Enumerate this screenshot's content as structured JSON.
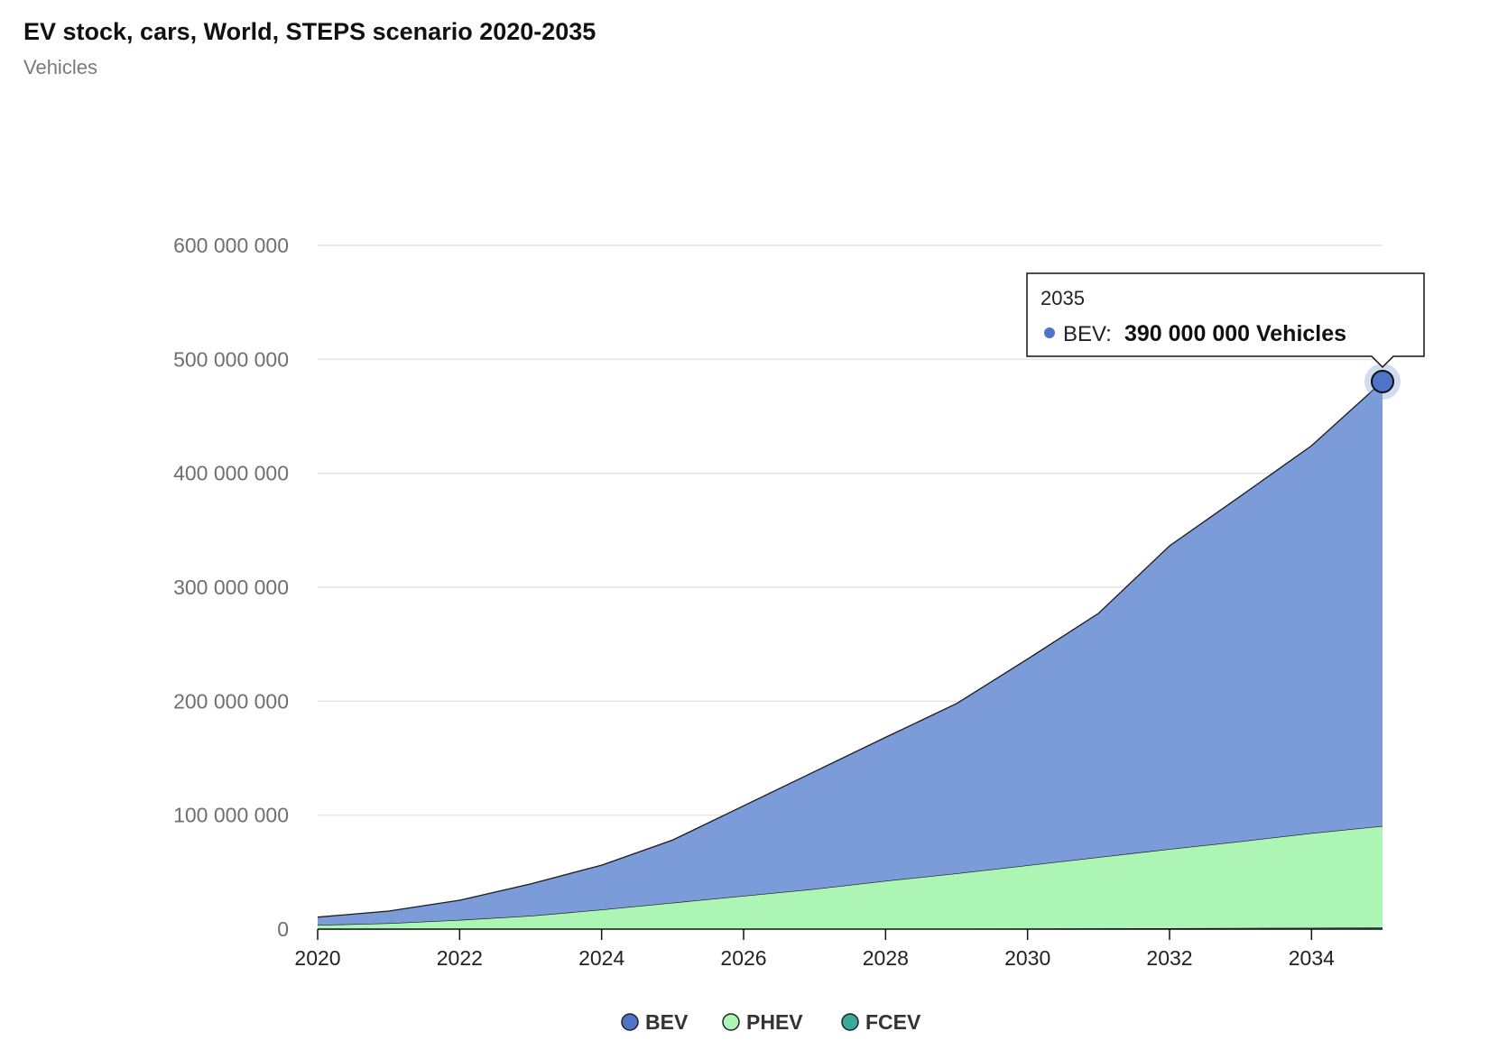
{
  "chart_data": {
    "type": "area",
    "stacked": true,
    "title": "EV stock, cars, World, STEPS scenario 2020-2035",
    "subtitle": "Vehicles",
    "xlabel": "",
    "ylabel": "",
    "x": [
      2020,
      2021,
      2022,
      2023,
      2024,
      2025,
      2026,
      2027,
      2028,
      2029,
      2030,
      2031,
      2032,
      2033,
      2034,
      2035
    ],
    "series": [
      {
        "name": "FCEV",
        "color": "#3aa99a",
        "values": [
          34000,
          50000,
          70000,
          90000,
          120000,
          150000,
          200000,
          260000,
          320000,
          400000,
          500000,
          650000,
          800000,
          1000000,
          1200000,
          1500000
        ]
      },
      {
        "name": "PHEV",
        "color": "#adf5b4",
        "values": [
          3600000,
          5100000,
          8000000,
          11600000,
          17000000,
          23000000,
          29000000,
          35000000,
          42000000,
          48500000,
          55500000,
          62500000,
          69500000,
          76000000,
          83000000,
          89000000
        ]
      },
      {
        "name": "BEV",
        "color": "#7b9bd9",
        "values": [
          6900000,
          10700000,
          17300000,
          28000000,
          39000000,
          55000000,
          79000000,
          103000000,
          126000000,
          149000000,
          181000000,
          214000000,
          266000000,
          303000000,
          340000000,
          390000000
        ]
      }
    ],
    "xticks": [
      "2020",
      "2022",
      "2024",
      "2026",
      "2028",
      "2030",
      "2032",
      "2034"
    ],
    "yticks": [
      "0",
      "100 000 000",
      "200 000 000",
      "300 000 000",
      "400 000 000",
      "500 000 000",
      "600 000 000"
    ],
    "xlim": [
      2020,
      2035
    ],
    "ylim": [
      0,
      600000000
    ],
    "grid": true,
    "legend": {
      "placement": "bottom-center",
      "items": [
        "BEV",
        "PHEV",
        "FCEV"
      ]
    },
    "tooltip": {
      "year": "2035",
      "series": "BEV",
      "label": "BEV:",
      "value_text": "390 000 000 Vehicles"
    }
  },
  "colors": {
    "bev": "#7b9bd9",
    "bev_marker": "#4d74c9",
    "phev": "#adf5b4",
    "fcev": "#3aa99a",
    "grid": "#e3e3e3"
  }
}
